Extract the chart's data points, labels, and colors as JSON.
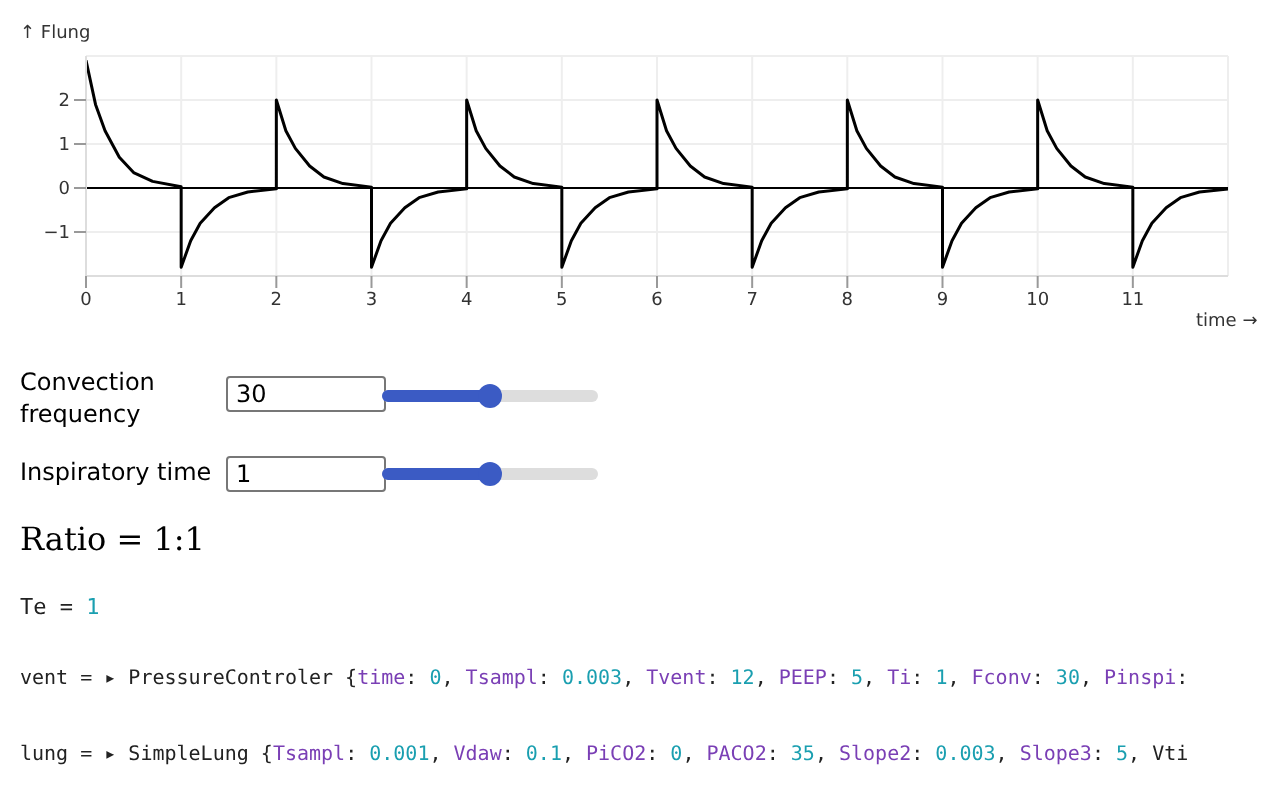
{
  "chart_data": {
    "type": "line",
    "xlabel": "time →",
    "ylabel": "↑ Flung",
    "series": [
      {
        "color": "#000000",
        "x": [
          0,
          0.1,
          0.2,
          0.35,
          0.5,
          0.7,
          1,
          1,
          1.1,
          1.2,
          1.35,
          1.5,
          1.7,
          2,
          2,
          2.1,
          2.2,
          2.35,
          2.5,
          2.7,
          3,
          3,
          3.1,
          3.2,
          3.35,
          3.5,
          3.7,
          4,
          4,
          4.1,
          4.2,
          4.35,
          4.5,
          4.7,
          5,
          5,
          5.1,
          5.2,
          5.35,
          5.5,
          5.7,
          6,
          6,
          6.1,
          6.2,
          6.35,
          6.5,
          6.7,
          7,
          7,
          7.1,
          7.2,
          7.35,
          7.5,
          7.7,
          8,
          8,
          8.1,
          8.2,
          8.35,
          8.5,
          8.7,
          9,
          9,
          9.1,
          9.2,
          9.35,
          9.5,
          9.7,
          10,
          10,
          10.1,
          10.2,
          10.35,
          10.5,
          10.7,
          11,
          11,
          11.1,
          11.2,
          11.35,
          11.5,
          11.7,
          12
        ],
        "values": [
          2.9,
          1.9,
          1.3,
          0.7,
          0.35,
          0.15,
          0.03,
          -1.8,
          -1.2,
          -0.8,
          -0.45,
          -0.22,
          -0.09,
          -0.02,
          2,
          1.3,
          0.9,
          0.5,
          0.25,
          0.1,
          0.02,
          -1.8,
          -1.2,
          -0.8,
          -0.45,
          -0.22,
          -0.09,
          -0.02,
          2,
          1.3,
          0.9,
          0.5,
          0.25,
          0.1,
          0.02,
          -1.8,
          -1.2,
          -0.8,
          -0.45,
          -0.22,
          -0.09,
          -0.02,
          2,
          1.3,
          0.9,
          0.5,
          0.25,
          0.1,
          0.02,
          -1.8,
          -1.2,
          -0.8,
          -0.45,
          -0.22,
          -0.09,
          -0.02,
          2,
          1.3,
          0.9,
          0.5,
          0.25,
          0.1,
          0.02,
          -1.8,
          -1.2,
          -0.8,
          -0.45,
          -0.22,
          -0.09,
          -0.02,
          2,
          1.3,
          0.9,
          0.5,
          0.25,
          0.1,
          0.02,
          -1.8,
          -1.2,
          -0.8,
          -0.45,
          -0.22,
          -0.09,
          -0.02
        ]
      }
    ],
    "xlim": [
      0,
      12
    ],
    "xticks": [
      0,
      1,
      2,
      3,
      4,
      5,
      6,
      7,
      8,
      9,
      10,
      11
    ],
    "ylim": [
      -2,
      3
    ],
    "yticks": [
      -1,
      0,
      1,
      2
    ],
    "grid": true,
    "marker": "none",
    "line_style": "solid",
    "ref_lines": [
      {
        "axis": "y",
        "value": 0,
        "color": "#000000"
      }
    ],
    "annotations": [
      "Convection frequency",
      "30",
      "Inspiratory time",
      "1",
      "Ratio = 1:1",
      "Te = 1",
      "vent = ▸ PressureControler {time: 0, Tsampl: 0.003, Tvent: 12, PEEP: 5, Ti: 1, Fconv: 30, Pinspi:",
      "lung = ▸ SimpleLung {Tsampl: 0.001, Vdaw: 0.1, PiCO2: 0, PACO2: 35, Slope2: 0.003, Slope3: 5, Vti"
    ]
  }
}
